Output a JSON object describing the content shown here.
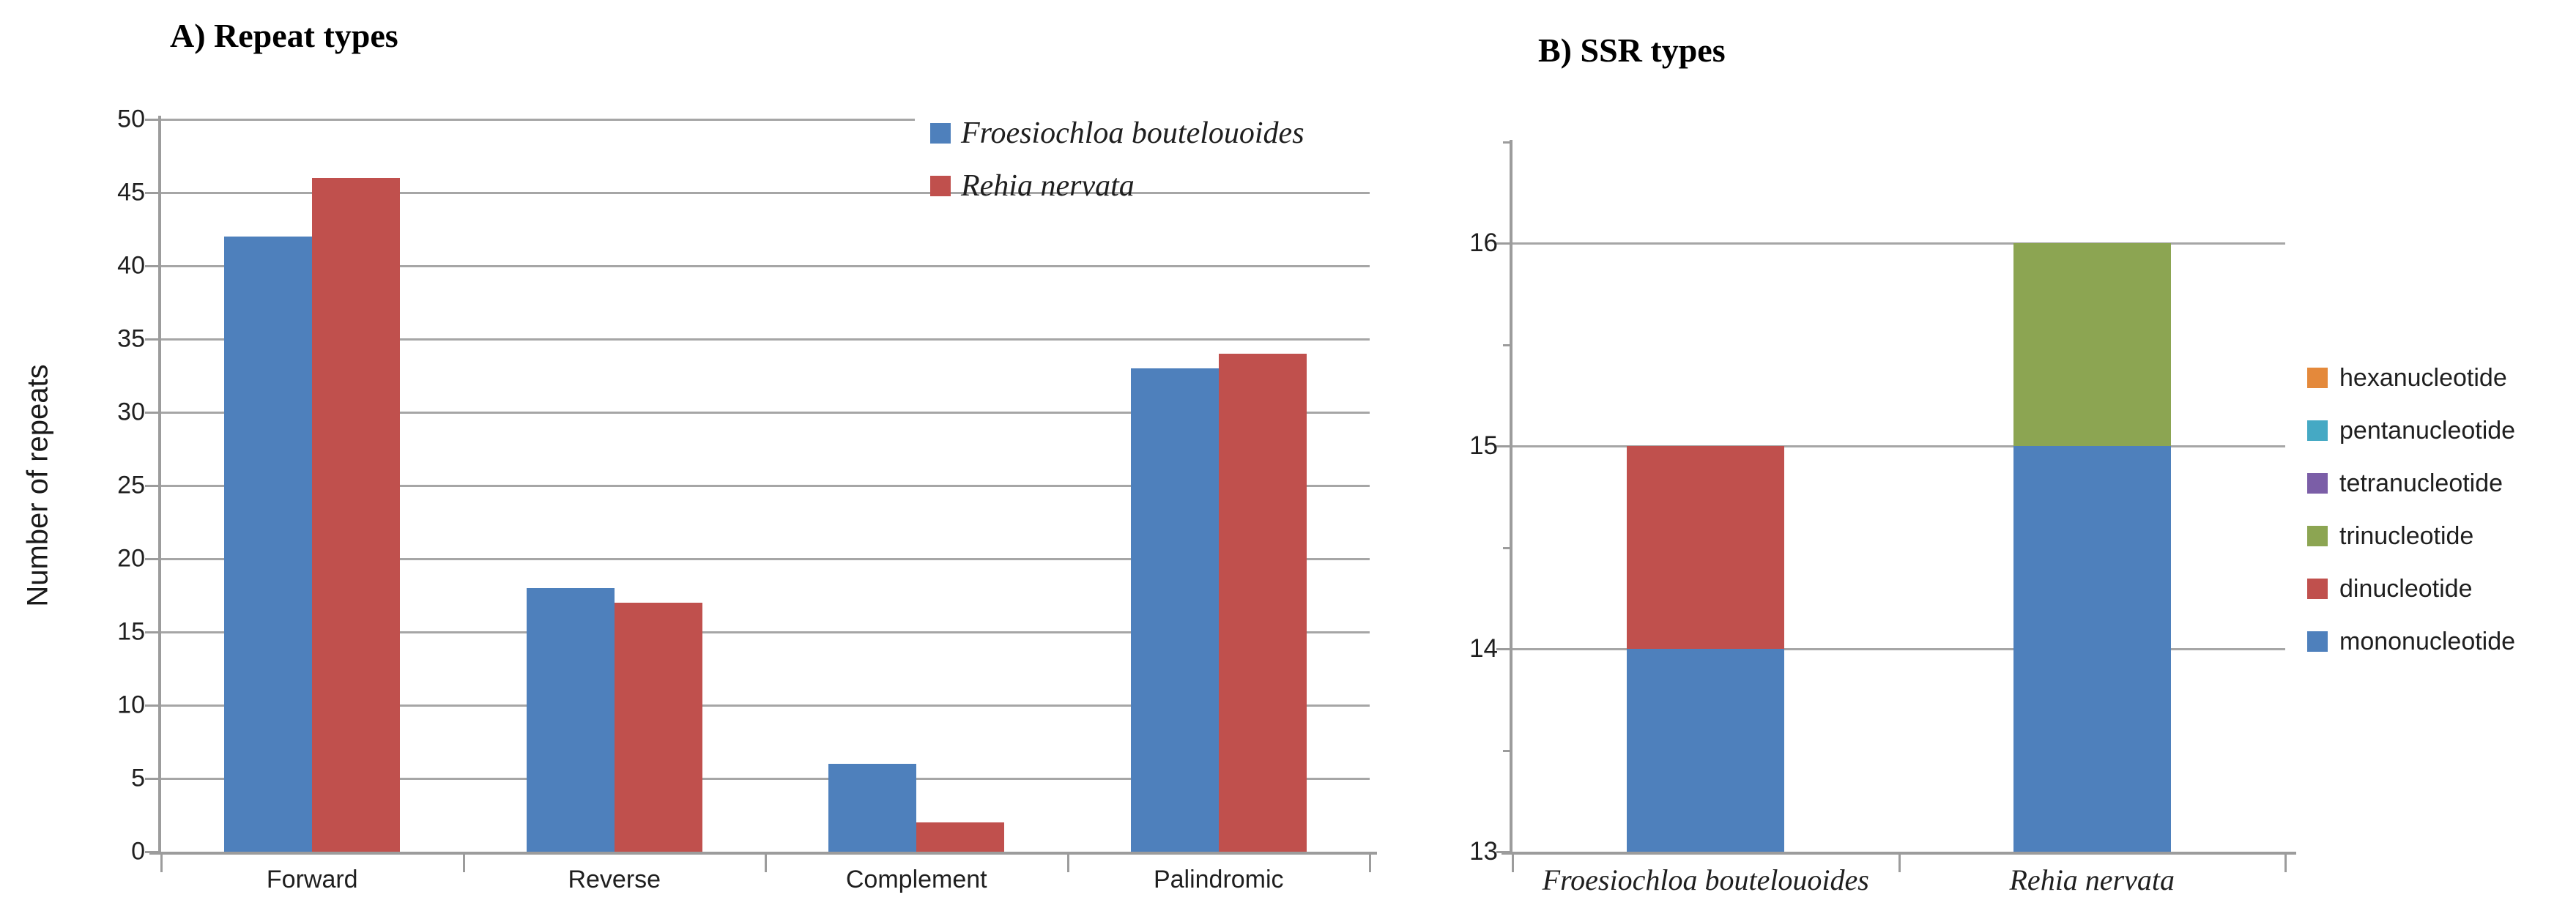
{
  "figure": {
    "background": "#ffffff"
  },
  "styles": {
    "gridline_color": "#A6A6A6",
    "axis_color": "#9C9C9C",
    "text_color": "#1f1f1f"
  },
  "chart_data": [
    {
      "id": "repeat-types",
      "type": "bar",
      "title": "A) Repeat types",
      "ylabel": "Number of repeats",
      "xlabel": "",
      "categories": [
        "Forward",
        "Reverse",
        "Complement",
        "Palindromic"
      ],
      "series": [
        {
          "name": "Froesiochloa boutelouoides",
          "color": "#4E80BC",
          "values": [
            42,
            18,
            6,
            33
          ]
        },
        {
          "name": "Rehia nervata",
          "color": "#C0504D",
          "values": [
            46,
            17,
            2,
            34
          ]
        }
      ],
      "ylim": [
        0,
        50
      ],
      "yticks": [
        0,
        5,
        10,
        15,
        20,
        25,
        30,
        35,
        40,
        45,
        50
      ],
      "grid": true,
      "legend_position": "inside-top-right"
    },
    {
      "id": "ssr-types",
      "type": "stacked-bar",
      "title": "B) SSR types",
      "ylabel": "",
      "xlabel": "",
      "categories": [
        "Froesiochloa boutelouoides",
        "Rehia nervata"
      ],
      "series": [
        {
          "name": "mononucleotide",
          "color": "#4E80BC",
          "values": [
            14,
            15
          ]
        },
        {
          "name": "dinucleotide",
          "color": "#C0504D",
          "values": [
            1,
            0
          ]
        },
        {
          "name": "trinucleotide",
          "color": "#8CA552",
          "values": [
            0,
            1
          ]
        },
        {
          "name": "tetranucleotide",
          "color": "#7B5EA7",
          "values": [
            0,
            0
          ]
        },
        {
          "name": "pentanucleotide",
          "color": "#45A9C4",
          "values": [
            0,
            0
          ]
        },
        {
          "name": "hexanucleotide",
          "color": "#E4893B",
          "values": [
            0,
            0
          ]
        }
      ],
      "legend": [
        "hexanucleotide",
        "pentanucleotide",
        "tetranucleotide",
        "trinucleotide",
        "dinucleotide",
        "mononucleotide"
      ],
      "ylim": [
        13,
        16.5
      ],
      "baseline": 13,
      "yticks": [
        13,
        14,
        15,
        16
      ],
      "minor_yticks": [
        13.5,
        14.5,
        15.5,
        16.5
      ],
      "grid": true,
      "legend_position": "outside-right"
    }
  ]
}
